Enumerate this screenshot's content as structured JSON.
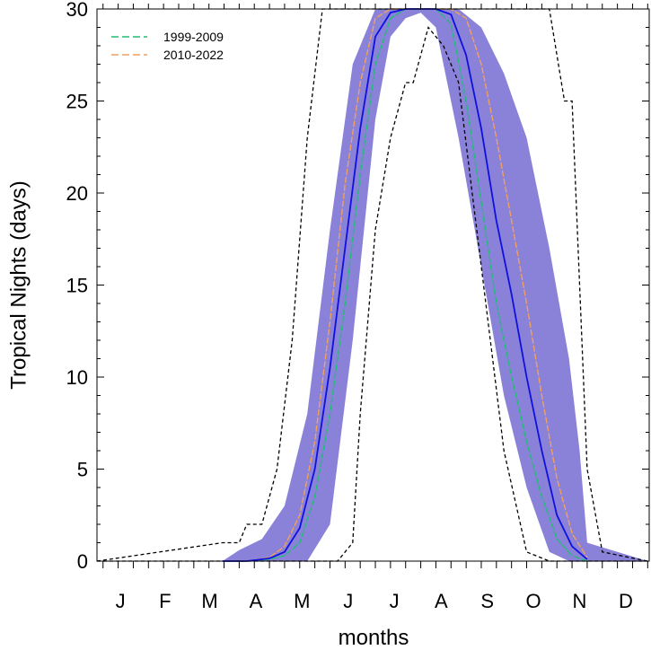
{
  "chart_data": {
    "type": "line",
    "title": "",
    "xlabel": "months",
    "ylabel": "Tropical Nights (days)",
    "ylim": [
      0,
      30
    ],
    "y_ticks": [
      0,
      5,
      10,
      15,
      20,
      25,
      30
    ],
    "x_tick_labels": [
      "J",
      "F",
      "M",
      "A",
      "M",
      "J",
      "J",
      "A",
      "S",
      "O",
      "N",
      "D"
    ],
    "grid": false,
    "legend_position": "top-left",
    "colors": {
      "band": "#8a82d8",
      "mean": "#1010e0",
      "series_1999_2009": "#22bb77",
      "series_2010_2022": "#f0a060",
      "extremes": "#000000"
    },
    "x_unit": "day of year",
    "band_range": {
      "description": "shaded spread",
      "x": [
        1,
        84,
        95,
        110,
        125,
        140,
        155,
        170,
        185,
        195,
        205,
        215,
        225,
        240,
        255,
        270,
        285,
        300,
        313,
        320,
        325,
        365
      ],
      "lower": [
        0,
        0,
        0,
        0,
        0,
        0,
        2,
        12,
        24,
        28.5,
        29.5,
        29.8,
        29,
        23,
        16,
        9,
        4,
        0.5,
        0,
        0,
        0,
        0
      ],
      "upper": [
        0,
        0,
        0.6,
        1.2,
        3,
        8,
        18,
        27,
        30,
        30,
        30,
        30,
        30,
        30,
        29,
        26.5,
        23,
        17,
        11,
        6,
        1,
        0
      ]
    },
    "extreme_bounds": {
      "x": [
        1,
        84,
        95,
        100,
        110,
        120,
        130,
        140,
        150,
        160,
        170,
        175,
        185,
        195,
        205,
        210,
        220,
        230,
        240,
        255,
        270,
        285,
        300,
        310,
        315,
        325,
        335,
        365
      ],
      "min": [
        0,
        0,
        0,
        0,
        0,
        0,
        0,
        0,
        0,
        0,
        1,
        8,
        18,
        23,
        26,
        26,
        29,
        28,
        26,
        16,
        6,
        0.5,
        0,
        0,
        0,
        0,
        0,
        0
      ],
      "max": [
        0,
        1,
        1,
        2,
        2,
        5,
        12,
        23,
        30,
        30,
        30,
        30,
        30,
        30,
        30,
        30,
        30,
        30,
        30,
        30,
        30,
        30,
        30,
        25,
        25,
        5,
        0.5,
        0
      ]
    },
    "series": [
      {
        "name": "1999-2009",
        "x": [
          84,
          100,
          115,
          125,
          135,
          145,
          155,
          165,
          175,
          185,
          195,
          205,
          215,
          225,
          235,
          245,
          255,
          265,
          275,
          285,
          295,
          305,
          315,
          325
        ],
        "values": [
          0,
          0,
          0.1,
          0.3,
          1.0,
          3.5,
          8.0,
          14.0,
          21.0,
          27.0,
          29.5,
          30,
          30,
          30,
          29.2,
          25.0,
          19.5,
          14.0,
          10.0,
          6.5,
          3.5,
          1.2,
          0.3,
          0
        ]
      },
      {
        "name": "2010-2022",
        "x": [
          84,
          100,
          115,
          125,
          135,
          145,
          155,
          165,
          175,
          185,
          195,
          205,
          215,
          225,
          235,
          245,
          255,
          265,
          275,
          285,
          295,
          305,
          315,
          325
        ],
        "values": [
          0,
          0,
          0.2,
          0.8,
          2.5,
          6.5,
          13.0,
          20.5,
          26.0,
          29.5,
          30,
          30,
          30,
          30,
          30,
          29.5,
          27.0,
          23.0,
          18.5,
          14.0,
          9.0,
          4.5,
          1.5,
          0.2
        ]
      },
      {
        "x": [
          84,
          100,
          115,
          125,
          135,
          145,
          155,
          165,
          175,
          185,
          195,
          205,
          215,
          225,
          235,
          245,
          255,
          265,
          275,
          285,
          295,
          305,
          315,
          325
        ],
        "values": [
          0,
          0,
          0.15,
          0.5,
          1.8,
          5.0,
          10.5,
          17.0,
          23.5,
          28.5,
          29.8,
          30,
          30,
          30,
          29.7,
          27.5,
          23.5,
          18.5,
          14.5,
          10.0,
          6.0,
          2.5,
          0.8,
          0.1
        ]
      }
    ]
  }
}
